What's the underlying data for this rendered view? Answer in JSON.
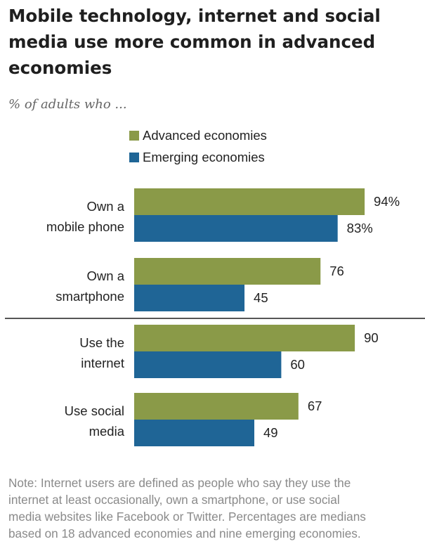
{
  "title": "Mobile technology, internet and social media use more common in advanced economies",
  "subtitle": "% of adults who ...",
  "note": "Note: Internet users are defined as people who say they use the\ninternet at least occasionally, own a smartphone, or use social\nmedia websites like Facebook or Twitter. Percentages are medians\nbased on 18 advanced economies and nine emerging economies.",
  "colors": {
    "advanced": "#8a9a48",
    "emerging": "#1f6596",
    "divider": "#555555",
    "text": "#222222"
  },
  "chart_data": {
    "type": "bar",
    "orientation": "horizontal",
    "categories": [
      "Own a mobile phone",
      "Own a smartphone",
      "Use the internet",
      "Use social media"
    ],
    "category_lines": [
      [
        "Own a",
        "mobile phone"
      ],
      [
        "Own a",
        "smartphone"
      ],
      [
        "Use the",
        "internet"
      ],
      [
        "Use social",
        "media"
      ]
    ],
    "series": [
      {
        "name": "Advanced economies",
        "values": [
          94,
          76,
          90,
          67
        ],
        "labels": [
          "94%",
          "76",
          "90",
          "67"
        ]
      },
      {
        "name": "Emerging economies",
        "values": [
          83,
          45,
          60,
          49
        ],
        "labels": [
          "83%",
          "45",
          "60",
          "49"
        ]
      }
    ],
    "xlim": [
      0,
      100
    ],
    "legend_position": "top",
    "divider_after_category": 1
  }
}
